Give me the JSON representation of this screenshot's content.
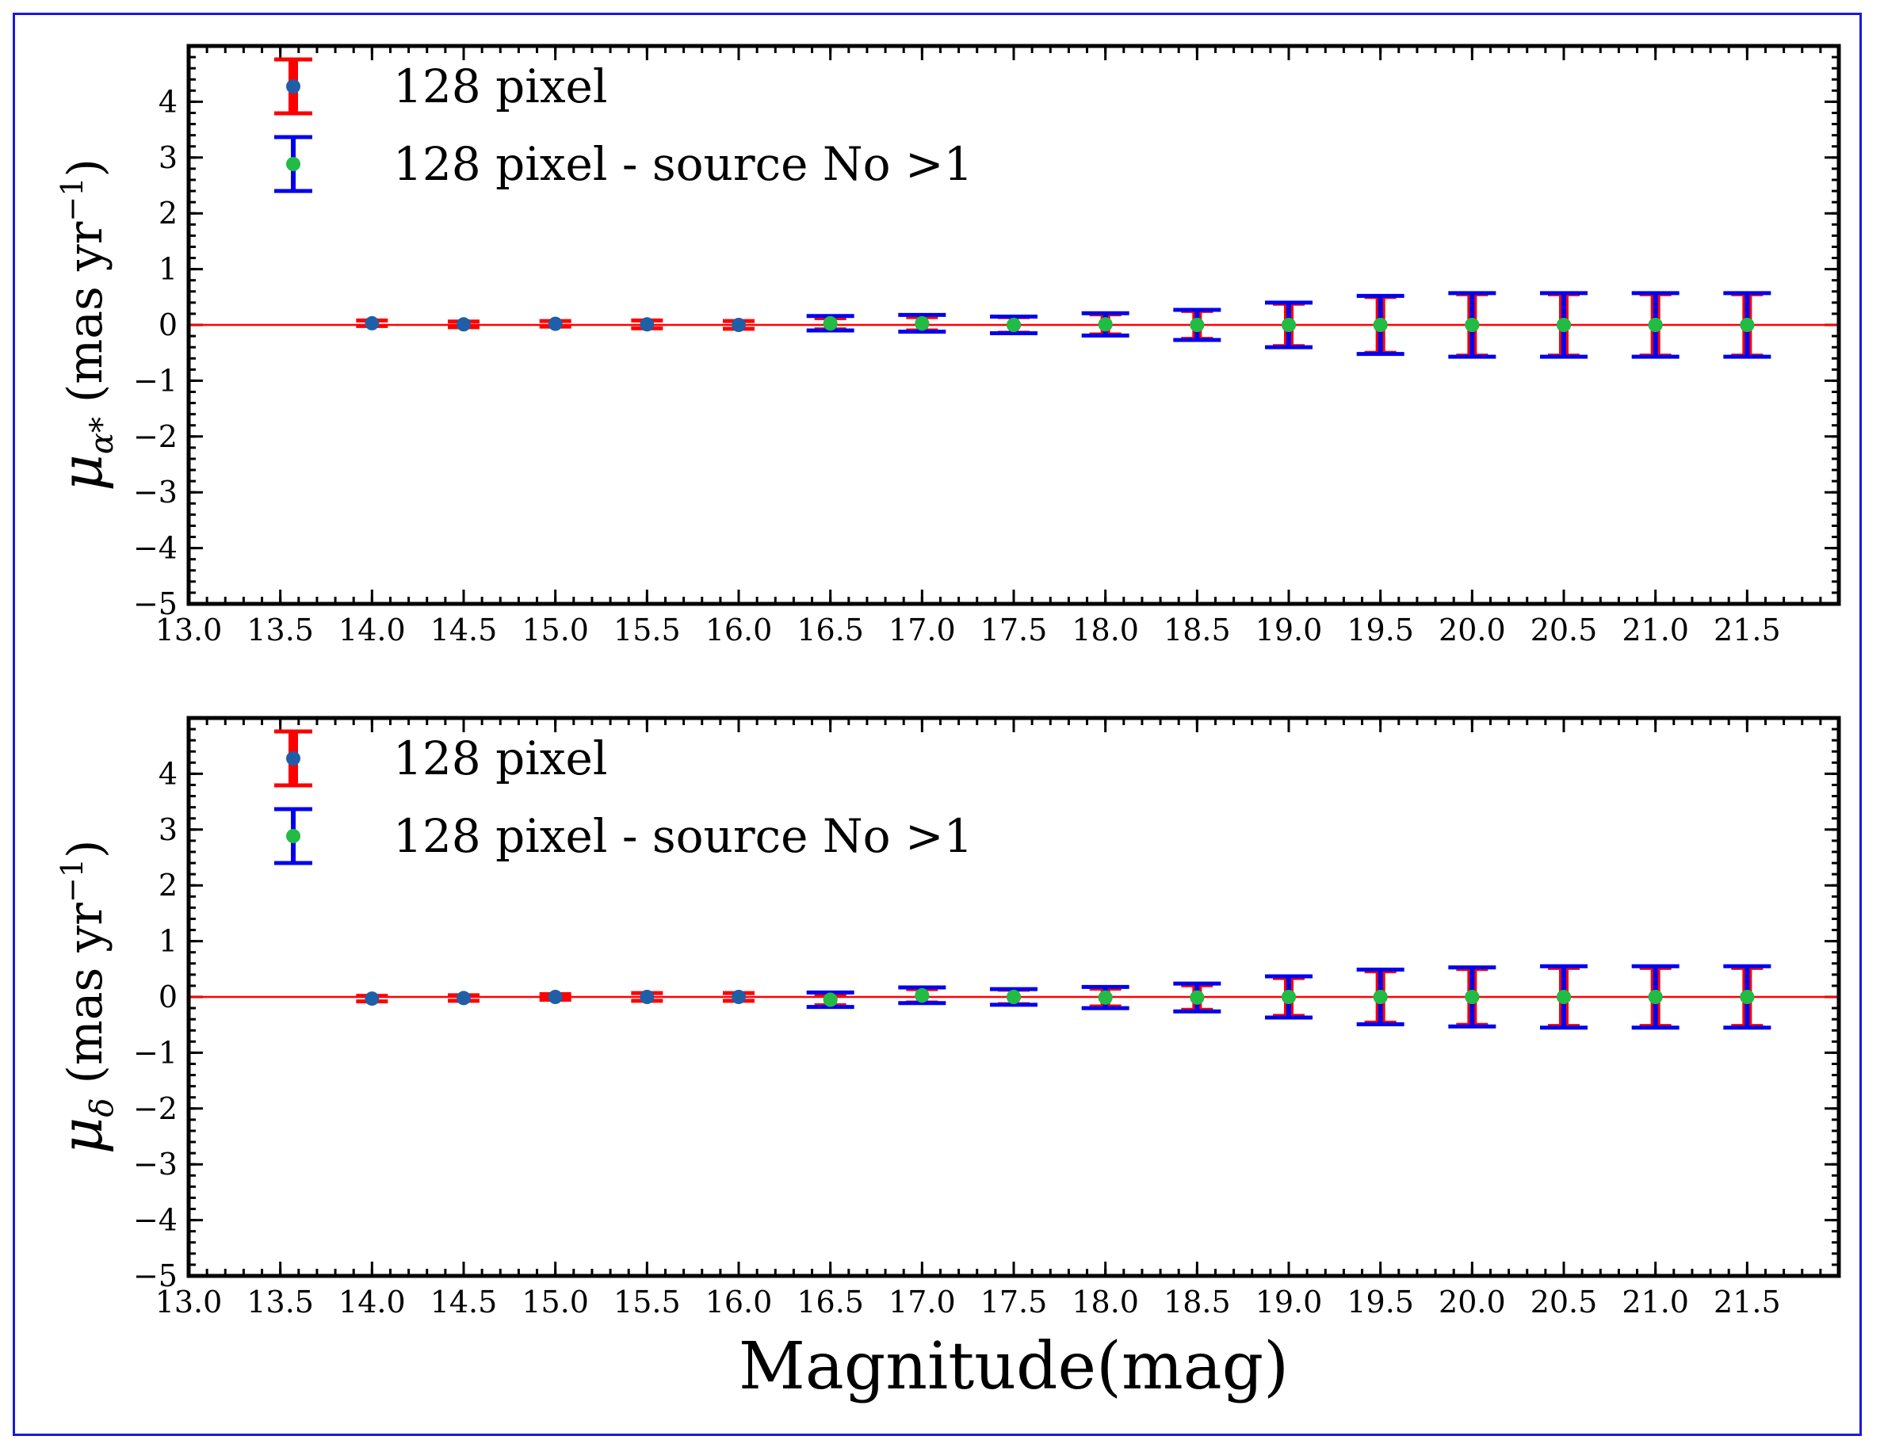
{
  "chart_data": [
    {
      "type": "errorbar",
      "panel": "top",
      "ylabel_sym": "μ",
      "ylabel_sub": "α*",
      "ylabel_unit": "(mas yr",
      "ylabel_exp": "−1",
      "ylabel_close": ")",
      "xlabel": "",
      "xlim": [
        13.0,
        22.0
      ],
      "ylim": [
        -5,
        5
      ],
      "xticks": [
        13.0,
        13.5,
        14.0,
        14.5,
        15.0,
        15.5,
        16.0,
        16.5,
        17.0,
        17.5,
        18.0,
        18.5,
        19.0,
        19.5,
        20.0,
        20.5,
        21.0,
        21.5
      ],
      "xtick_labels": [
        "13.0",
        "13.5",
        "14.0",
        "14.5",
        "15.0",
        "15.5",
        "16.0",
        "16.5",
        "17.0",
        "17.5",
        "18.0",
        "18.5",
        "19.0",
        "19.5",
        "20.0",
        "20.5",
        "21.0",
        "21.5"
      ],
      "yticks": [
        -5,
        -4,
        -3,
        -2,
        -1,
        0,
        1,
        2,
        3,
        4
      ],
      "ytick_labels": [
        "−5",
        "−4",
        "−3",
        "−2",
        "−1",
        "0",
        "1",
        "2",
        "3",
        "4"
      ],
      "reference_line": 0,
      "legend": [
        "128 pixel",
        "128 pixel - source No >1"
      ],
      "series": [
        {
          "name": "128 pixel",
          "color": "#ff0000",
          "marker_color": "#1f5fa8",
          "x": [
            14.0,
            14.5,
            15.0,
            15.5,
            16.0,
            16.5,
            17.0,
            17.5,
            18.0,
            18.5,
            19.0,
            19.5,
            20.0,
            20.5,
            21.0,
            21.5
          ],
          "y": [
            0.03,
            0.01,
            0.02,
            0.01,
            0.0,
            0.02,
            0.02,
            0.0,
            0.01,
            0.0,
            0.0,
            0.0,
            0.0,
            0.0,
            0.0,
            0.0
          ],
          "err": [
            0.05,
            0.05,
            0.05,
            0.07,
            0.07,
            0.1,
            0.12,
            0.14,
            0.18,
            0.25,
            0.38,
            0.5,
            0.55,
            0.55,
            0.55,
            0.55
          ]
        },
        {
          "name": "128 pixel - source No >1",
          "color": "#0000ee",
          "marker_color": "#22bb44",
          "x": [
            16.5,
            17.0,
            17.5,
            18.0,
            18.5,
            19.0,
            19.5,
            20.0,
            20.5,
            21.0,
            21.5
          ],
          "y": [
            0.03,
            0.03,
            0.0,
            0.01,
            0.0,
            0.0,
            0.0,
            0.0,
            0.0,
            0.0,
            0.0
          ],
          "err": [
            0.13,
            0.15,
            0.15,
            0.2,
            0.27,
            0.4,
            0.52,
            0.57,
            0.57,
            0.57,
            0.57
          ]
        }
      ]
    },
    {
      "type": "errorbar",
      "panel": "bottom",
      "ylabel_sym": "μ",
      "ylabel_sub": "δ",
      "ylabel_unit": "(mas yr",
      "ylabel_exp": "−1",
      "ylabel_close": ")",
      "xlabel": "Magnitude(mag)",
      "xlim": [
        13.0,
        22.0
      ],
      "ylim": [
        -5,
        5
      ],
      "xticks": [
        13.0,
        13.5,
        14.0,
        14.5,
        15.0,
        15.5,
        16.0,
        16.5,
        17.0,
        17.5,
        18.0,
        18.5,
        19.0,
        19.5,
        20.0,
        20.5,
        21.0,
        21.5
      ],
      "xtick_labels": [
        "13.0",
        "13.5",
        "14.0",
        "14.5",
        "15.0",
        "15.5",
        "16.0",
        "16.5",
        "17.0",
        "17.5",
        "18.0",
        "18.5",
        "19.0",
        "19.5",
        "20.0",
        "20.5",
        "21.0",
        "21.5"
      ],
      "yticks": [
        -5,
        -4,
        -3,
        -2,
        -1,
        0,
        1,
        2,
        3,
        4
      ],
      "ytick_labels": [
        "−5",
        "−4",
        "−3",
        "−2",
        "−1",
        "0",
        "1",
        "2",
        "3",
        "4"
      ],
      "reference_line": 0,
      "legend": [
        "128 pixel",
        "128 pixel - source No >1"
      ],
      "series": [
        {
          "name": "128 pixel",
          "color": "#ff0000",
          "marker_color": "#1f5fa8",
          "x": [
            14.0,
            14.5,
            15.0,
            15.5,
            16.0,
            16.5,
            17.0,
            17.5,
            18.0,
            18.5,
            19.0,
            19.5,
            20.0,
            20.5,
            21.0,
            21.5
          ],
          "y": [
            -0.03,
            -0.02,
            0.0,
            0.0,
            0.0,
            -0.05,
            0.02,
            0.0,
            -0.01,
            -0.01,
            0.0,
            0.0,
            0.0,
            0.0,
            0.0,
            0.0
          ],
          "err": [
            0.05,
            0.05,
            0.05,
            0.07,
            0.07,
            0.1,
            0.12,
            0.13,
            0.16,
            0.22,
            0.34,
            0.46,
            0.5,
            0.52,
            0.52,
            0.52
          ]
        },
        {
          "name": "128 pixel - source No >1",
          "color": "#0000ee",
          "marker_color": "#22bb44",
          "x": [
            16.5,
            17.0,
            17.5,
            18.0,
            18.5,
            19.0,
            19.5,
            20.0,
            20.5,
            21.0,
            21.5
          ],
          "y": [
            -0.05,
            0.03,
            0.0,
            -0.01,
            -0.01,
            0.0,
            0.0,
            0.0,
            0.0,
            0.0,
            0.0
          ],
          "err": [
            0.13,
            0.14,
            0.14,
            0.19,
            0.25,
            0.37,
            0.49,
            0.53,
            0.55,
            0.55,
            0.55
          ]
        }
      ]
    }
  ]
}
